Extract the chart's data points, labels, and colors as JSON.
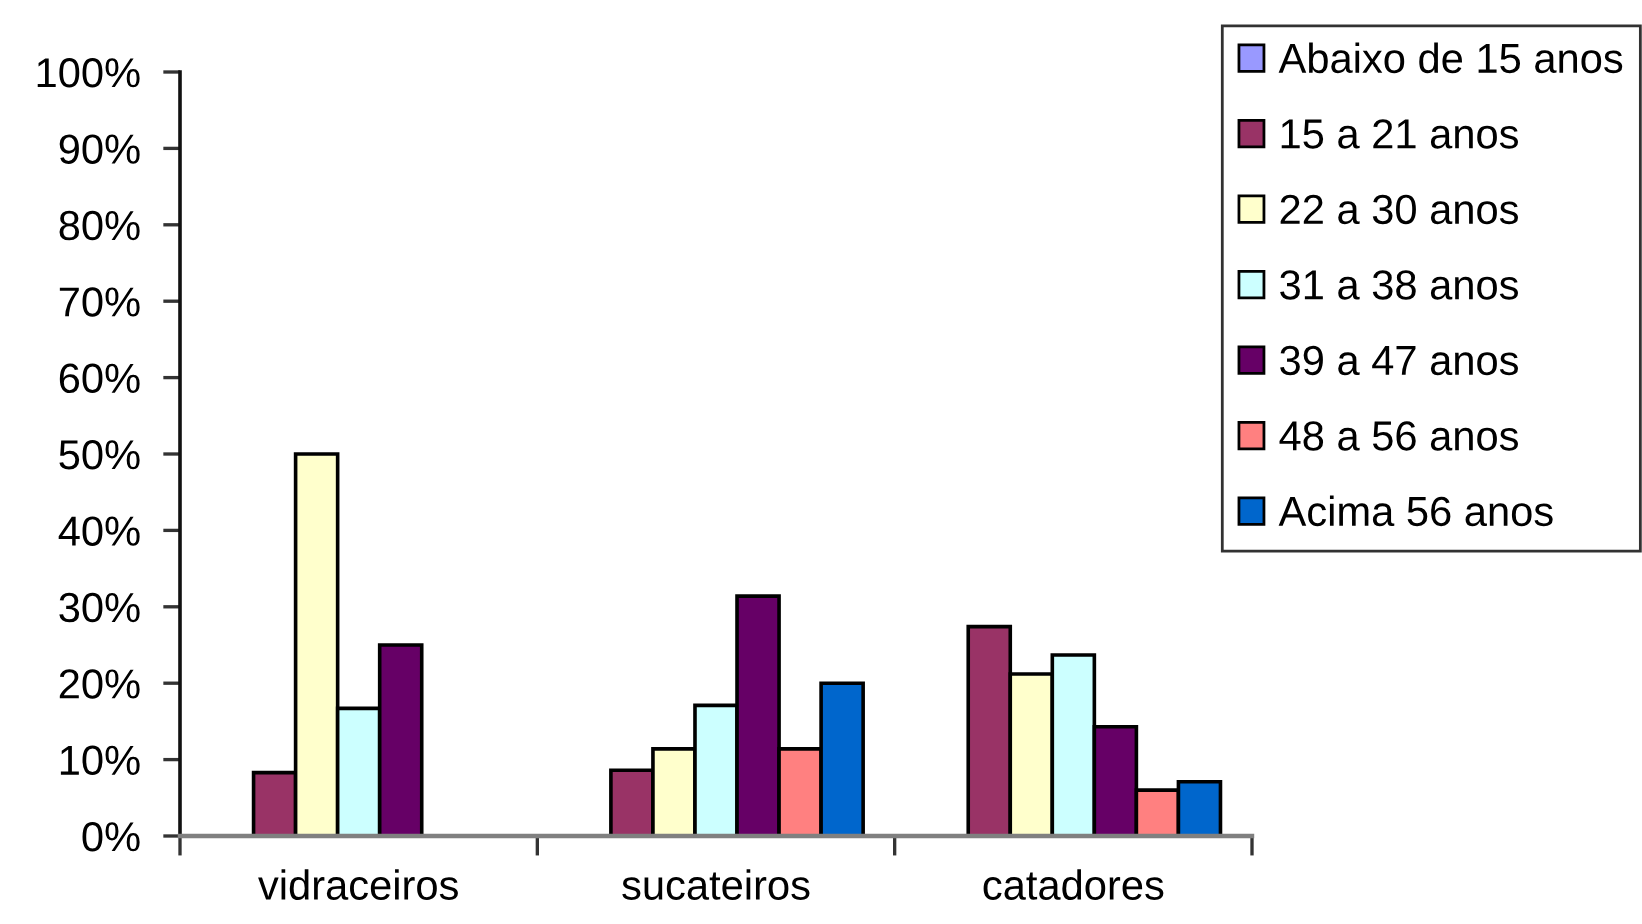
{
  "chart_data": {
    "type": "bar",
    "categories": [
      "vidraceiros",
      "sucateiros",
      "catadores"
    ],
    "series": [
      {
        "name": "Abaixo de 15 anos",
        "color": "#9999ff",
        "values": [
          null,
          null,
          null
        ]
      },
      {
        "name": "15 a 21 anos",
        "color": "#993366",
        "values": [
          8.3,
          8.6,
          27.4
        ]
      },
      {
        "name": "22 a 30 anos",
        "color": "#ffffcc",
        "values": [
          50,
          11.4,
          21.2
        ]
      },
      {
        "name": "31 a 38 anos",
        "color": "#ccffff",
        "values": [
          16.7,
          17.1,
          23.7
        ]
      },
      {
        "name": "39 a 47 anos",
        "color": "#660066",
        "values": [
          25,
          31.4,
          14.3
        ]
      },
      {
        "name": "48 a 56 anos",
        "color": "#ff8080",
        "values": [
          null,
          11.4,
          6.0
        ]
      },
      {
        "name": "Acima 56 anos",
        "color": "#0066cc",
        "values": [
          null,
          20,
          7.1
        ]
      }
    ],
    "ylim": [
      0,
      100
    ],
    "yticks": [
      {
        "value": 0,
        "label": "0%"
      },
      {
        "value": 10,
        "label": "10%"
      },
      {
        "value": 20,
        "label": "20%"
      },
      {
        "value": 30,
        "label": "30%"
      },
      {
        "value": 40,
        "label": "40%"
      },
      {
        "value": 50,
        "label": "50%"
      },
      {
        "value": 60,
        "label": "60%"
      },
      {
        "value": 70,
        "label": "70%"
      },
      {
        "value": 80,
        "label": "80%"
      },
      {
        "value": 90,
        "label": "90%"
      },
      {
        "value": 100,
        "label": "100%"
      }
    ],
    "grid": false,
    "legend": "top right"
  }
}
